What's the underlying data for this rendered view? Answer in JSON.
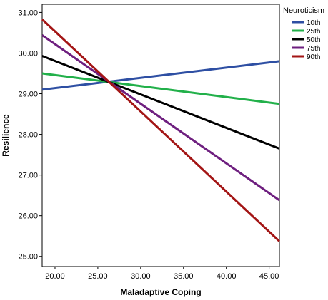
{
  "chart_data": {
    "type": "line",
    "xlabel": "Maladaptive Coping",
    "ylabel": "Resilience",
    "xlim": [
      18.5,
      46.2
    ],
    "ylim": [
      24.75,
      31.2
    ],
    "x_ticks": [
      "20.00",
      "25.00",
      "30.00",
      "35.00",
      "40.00",
      "45.00"
    ],
    "y_ticks": [
      "25.00",
      "26.00",
      "27.00",
      "28.00",
      "29.00",
      "30.00",
      "31.00"
    ],
    "legend": {
      "title": "Neuroticism",
      "position": "top-right"
    },
    "grid": false,
    "series": [
      {
        "name": "10th",
        "color": "#2e4fa3",
        "x": [
          18.5,
          46.2
        ],
        "y": [
          29.1,
          29.8
        ]
      },
      {
        "name": "25th",
        "color": "#22b04a",
        "x": [
          18.5,
          46.2
        ],
        "y": [
          29.5,
          28.75
        ]
      },
      {
        "name": "50th",
        "color": "#000000",
        "x": [
          18.5,
          46.2
        ],
        "y": [
          29.93,
          27.65
        ]
      },
      {
        "name": "75th",
        "color": "#6e1f7f",
        "x": [
          18.5,
          46.2
        ],
        "y": [
          30.44,
          26.38
        ]
      },
      {
        "name": "90th",
        "color": "#a31515",
        "x": [
          18.5,
          46.2
        ],
        "y": [
          30.83,
          25.37
        ]
      }
    ]
  }
}
